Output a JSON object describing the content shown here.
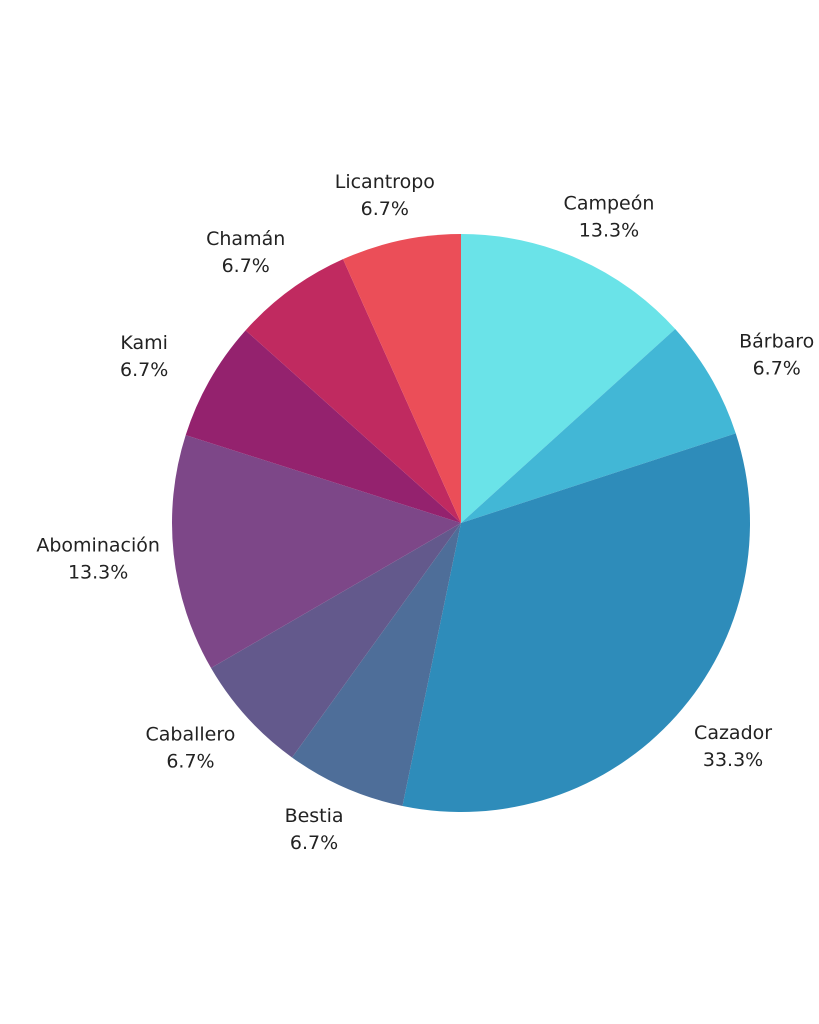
{
  "chart_data": {
    "type": "pie",
    "categories": [
      "Campeón",
      "Bárbaro",
      "Cazador",
      "Bestia",
      "Caballero",
      "Abominación",
      "Kami",
      "Chamán",
      "Licantropo"
    ],
    "values": [
      13.3,
      6.7,
      33.3,
      6.7,
      6.7,
      13.3,
      6.7,
      6.7,
      6.7
    ],
    "value_labels": [
      "13.3%",
      "6.7%",
      "33.3%",
      "6.7%",
      "6.7%",
      "13.3%",
      "6.7%",
      "6.7%",
      "6.7%"
    ],
    "colors": [
      "#6ae3e8",
      "#42b7d6",
      "#2e8cba",
      "#4e6e99",
      "#63598c",
      "#7d4788",
      "#94226e",
      "#c02a60",
      "#eb4e58"
    ]
  }
}
